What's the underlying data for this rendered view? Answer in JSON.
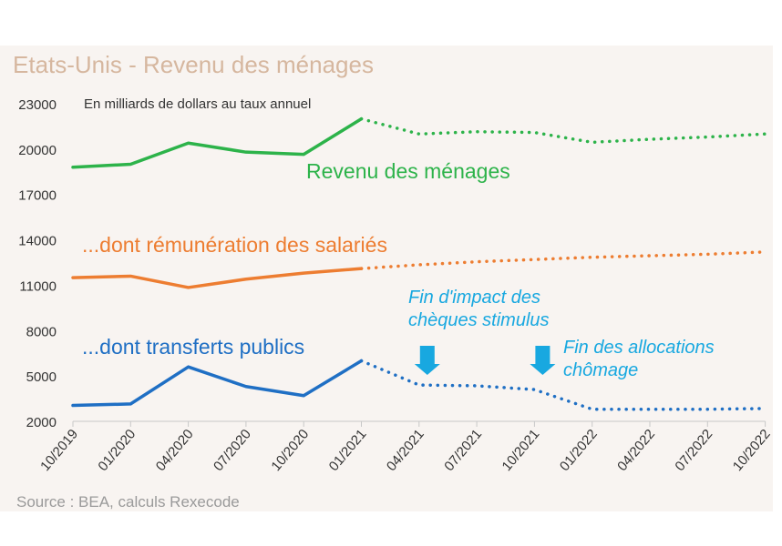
{
  "title": "Etats-Unis - Revenu des ménages",
  "source": "Source : BEA, calculs Rexecode",
  "chart_data": {
    "type": "line",
    "unit_note": "En milliards de dollars au taux annuel",
    "categories": [
      "10/2019",
      "01/2020",
      "04/2020",
      "07/2020",
      "10/2020",
      "01/2021",
      "04/2021",
      "07/2021",
      "10/2021",
      "01/2022",
      "04/2022",
      "07/2022",
      "10/2022"
    ],
    "y_ticks": [
      "2000",
      "5000",
      "8000",
      "11000",
      "14000",
      "17000",
      "20000",
      "23000"
    ],
    "ylim": [
      2000,
      23000
    ],
    "series": [
      {
        "name": "Revenu des ménages",
        "color": "#2db34a",
        "values": [
          18800,
          19000,
          20400,
          19800,
          19650,
          22000,
          21000,
          21150,
          21100,
          20450,
          20650,
          20800,
          21000
        ],
        "observed_until": 5
      },
      {
        "name": "...dont rémunération des salariés",
        "color": "#ed7d31",
        "values": [
          11500,
          11600,
          10850,
          11400,
          11800,
          12100,
          12350,
          12550,
          12700,
          12850,
          12950,
          13050,
          13200
        ],
        "observed_until": 5
      },
      {
        "name": "...dont transferts publics",
        "color": "#1f6fc4",
        "values": [
          3050,
          3150,
          5600,
          4300,
          3700,
          6000,
          4400,
          4350,
          4100,
          2800,
          2800,
          2800,
          2850
        ],
        "observed_until": 5
      }
    ],
    "annotations": [
      {
        "lines": [
          "Fin d'impact des",
          "chèques stimulus"
        ],
        "at_category": "04/2021"
      },
      {
        "lines": [
          "Fin des allocations",
          "chômage"
        ],
        "at_category": "10/2021"
      }
    ]
  }
}
